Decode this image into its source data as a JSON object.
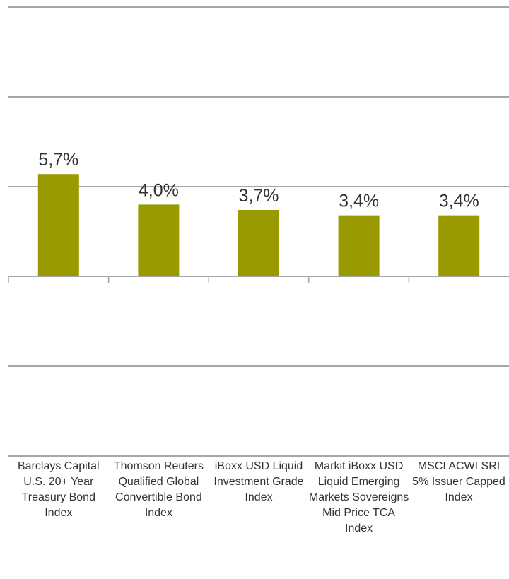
{
  "chart_data": {
    "type": "bar",
    "categories": [
      "Barclays Capital U.S. 20+ Year Treasury Bond Index",
      "Thomson Reuters Qualified Global Convertible Bond Index",
      "iBoxx USD Liquid Investment Grade Index",
      "Markit iBoxx USD Liquid Emerging Markets Sovereigns Mid Price TCA Index",
      "MSCI ACWI SRI 5% Issuer Capped Index"
    ],
    "values": [
      5.7,
      4.0,
      3.7,
      3.4,
      3.4
    ],
    "value_labels": [
      "5,7%",
      "4,0%",
      "3,7%",
      "3,4%",
      "3,4%"
    ],
    "color": "#999900",
    "ylim": [
      -10,
      15
    ],
    "yticks": [
      -10,
      -5,
      0,
      5,
      10,
      15
    ],
    "grid": true
  }
}
